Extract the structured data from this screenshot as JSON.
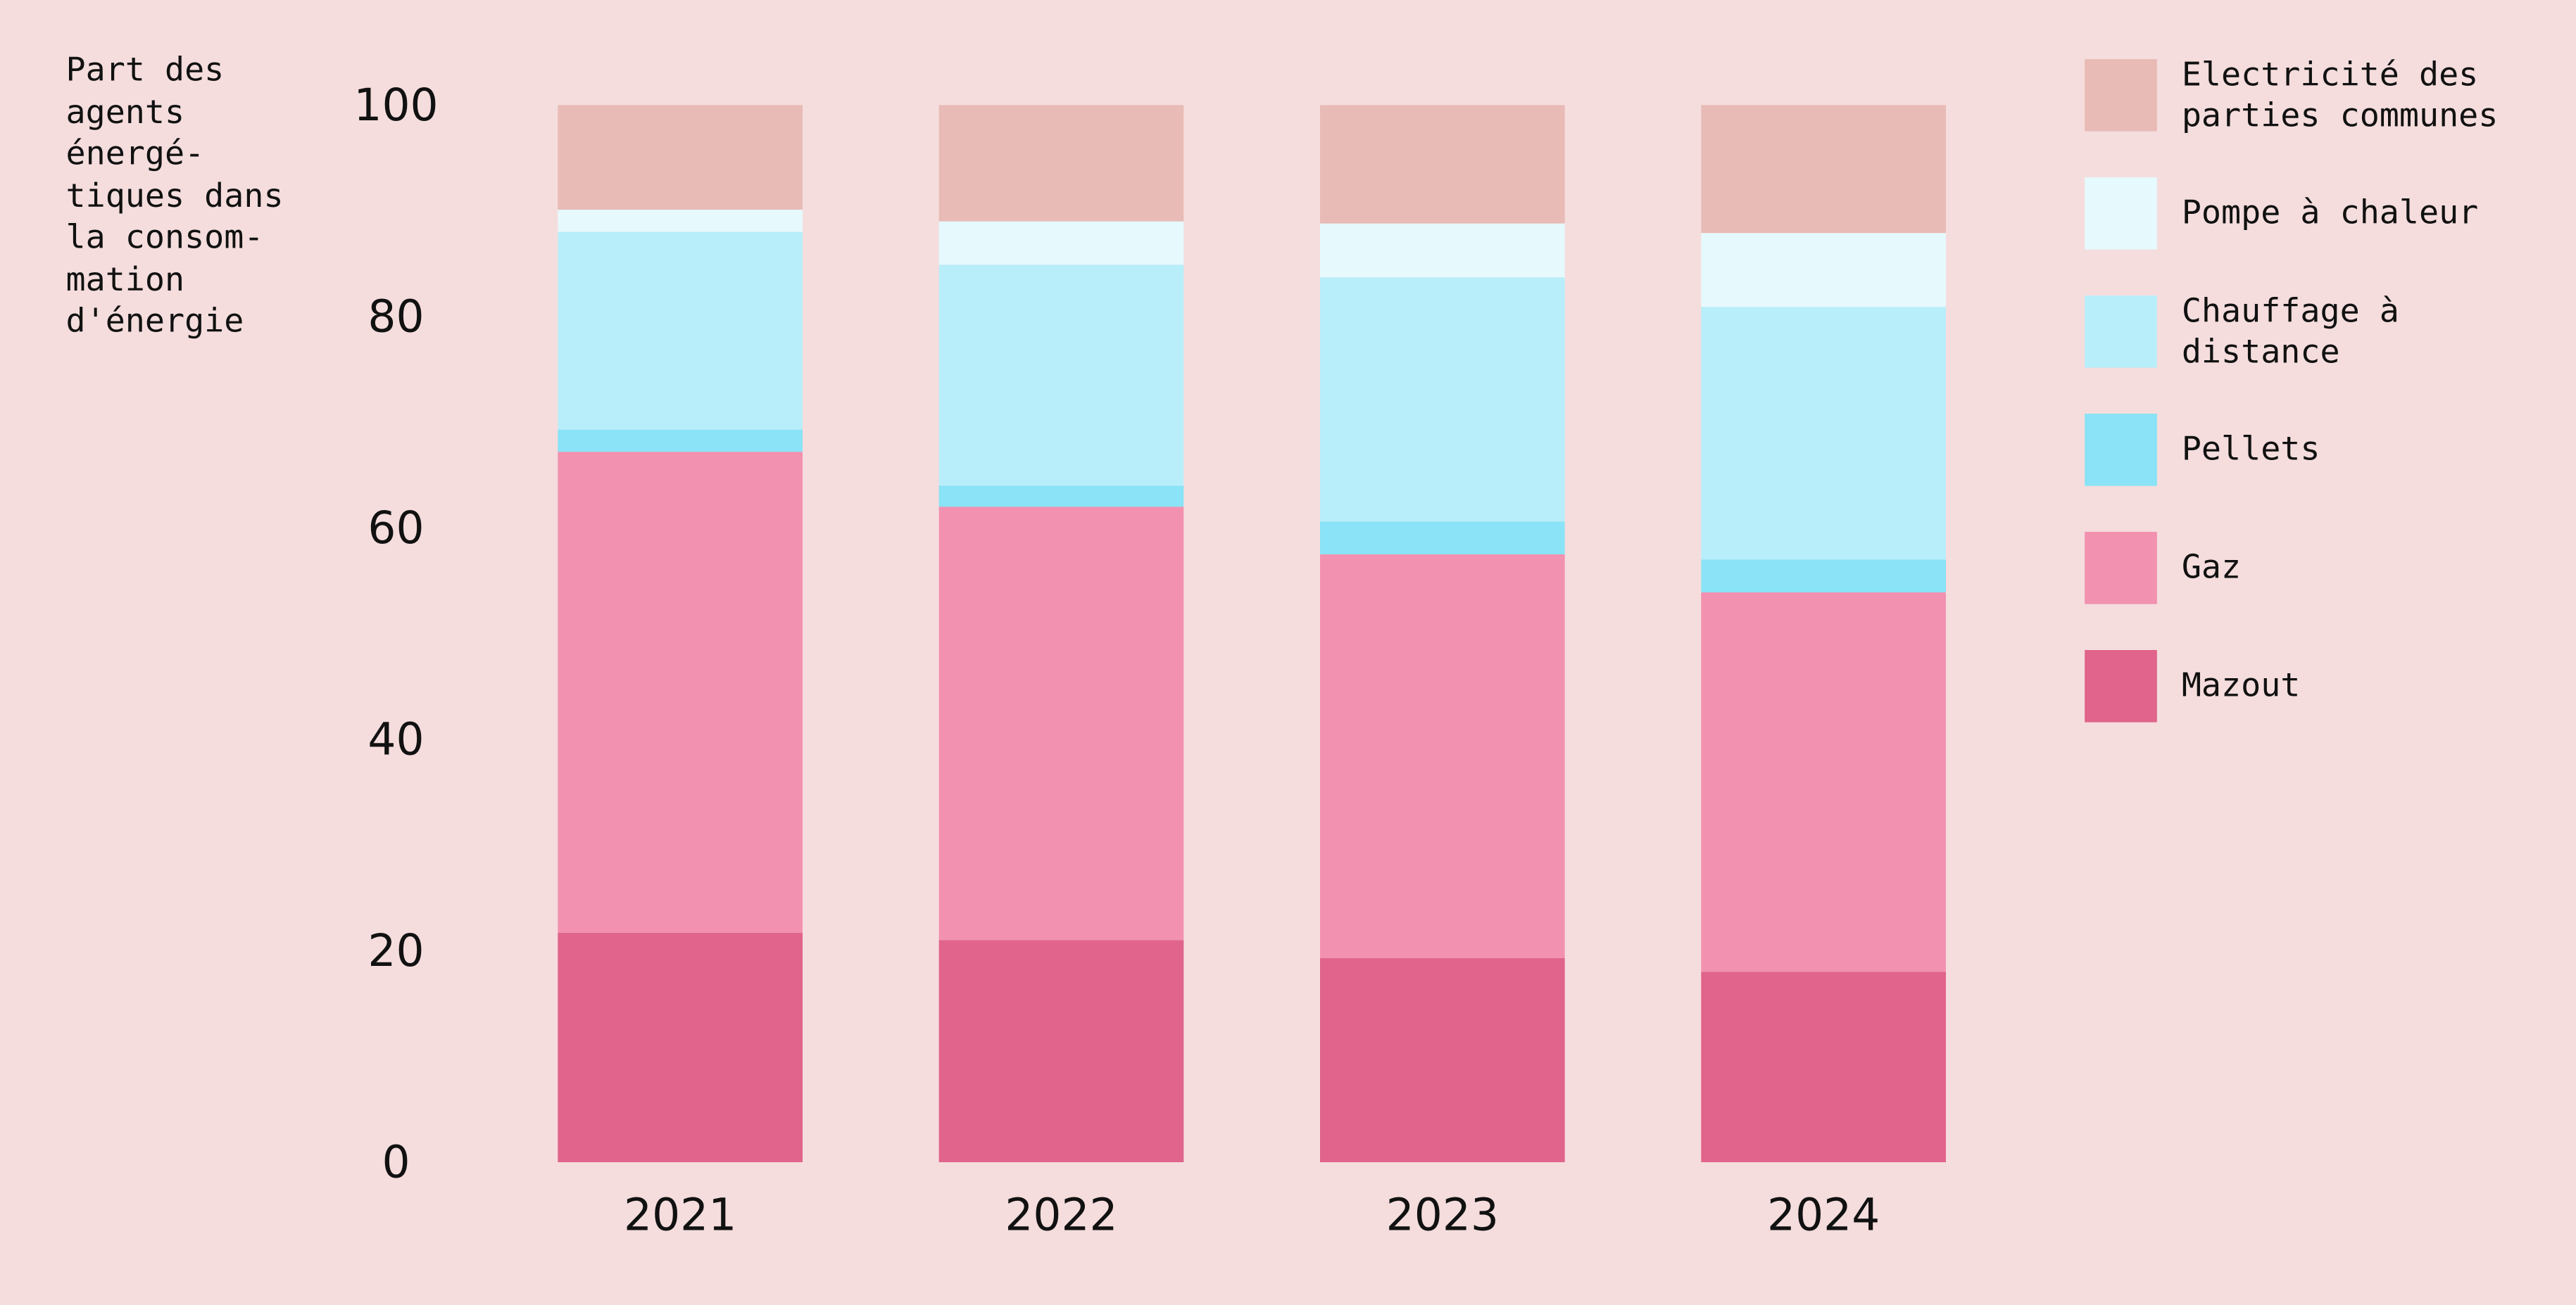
{
  "chart_data": {
    "type": "stacked_bar",
    "y_label": [
      "Part des",
      "agents",
      "énergé-",
      "tiques dans",
      "la consom-",
      "mation",
      "d'énergie"
    ],
    "categories": [
      "2021",
      "2022",
      "2023",
      "2024"
    ],
    "series": [
      {
        "name": "Mazout",
        "color": "#e0648b",
        "values": [
          21.7,
          21.0,
          19.3,
          18.0
        ]
      },
      {
        "name": "Gaz",
        "color": "#f291b0",
        "values": [
          45.5,
          41.0,
          38.2,
          35.9
        ]
      },
      {
        "name": "Pellets",
        "color": "#8ae3f6",
        "values": [
          2.1,
          2.0,
          3.1,
          3.1
        ]
      },
      {
        "name": "Chauffage à distance",
        "color": "#b8eefa",
        "values": [
          18.7,
          20.9,
          23.1,
          23.9
        ]
      },
      {
        "name": "Pompe à chaleur",
        "color": "#e6f9fc",
        "values": [
          2.1,
          4.1,
          5.1,
          7.0
        ]
      },
      {
        "name": "Electricité des parties communes",
        "color": "#e8bbb7",
        "values": [
          9.9,
          11.0,
          11.2,
          12.1
        ]
      }
    ],
    "ylim": [
      0,
      100
    ],
    "yticks": [
      0,
      20,
      40,
      60,
      80,
      100
    ],
    "grid": false,
    "legend": "right"
  }
}
